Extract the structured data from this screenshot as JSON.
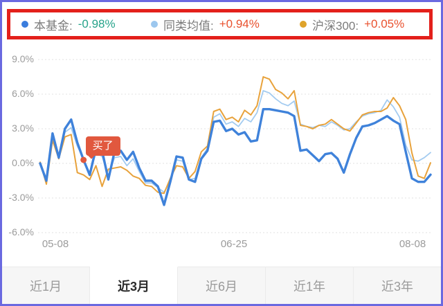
{
  "legend": {
    "items": [
      {
        "label": "本基金:",
        "value": "-0.98%",
        "dot_color": "#3b7ddd",
        "value_class": "lv-fund"
      },
      {
        "label": "同类均值:",
        "value": "+0.94%",
        "dot_color": "#9cc7ee",
        "value_class": "lv-up"
      },
      {
        "label": "沪深300:",
        "value": "+0.05%",
        "dot_color": "#dfa32a",
        "value_class": "lv-up"
      }
    ]
  },
  "marker": {
    "label": "买了",
    "index": 7,
    "dot_color": "#e1583e"
  },
  "chart_data": {
    "type": "line",
    "title": "",
    "xlabel": "",
    "ylabel": "",
    "x_labels": [
      "05-08",
      "06-25",
      "08-08"
    ],
    "ylim": [
      -6,
      9
    ],
    "yticks": [
      9,
      6,
      3,
      0,
      -3,
      -6
    ],
    "ytick_labels": [
      "9.0%",
      "6.0%",
      "3.0%",
      "0.0%",
      "-3.0%",
      "-6.0%"
    ],
    "grid": "horizontal-dotted",
    "legend_position": "top",
    "series": [
      {
        "name": "本基金",
        "data_name": "fund-line",
        "color": "#3f82da",
        "width": 3.4,
        "change": "-0.98%",
        "values": [
          0.0,
          -1.5,
          2.6,
          0.5,
          3.0,
          3.8,
          1.8,
          0.3,
          -1.0,
          1.3,
          1.1,
          -1.4,
          1.0,
          1.1,
          0.3,
          1.0,
          -0.4,
          -1.5,
          -1.5,
          -2.0,
          -3.6,
          -1.6,
          0.6,
          0.5,
          -1.4,
          -1.6,
          0.4,
          1.1,
          3.6,
          3.7,
          2.8,
          3.0,
          2.5,
          2.7,
          1.9,
          2.0,
          4.7,
          4.7,
          4.6,
          4.5,
          4.4,
          4.1,
          1.1,
          1.2,
          0.7,
          0.2,
          0.8,
          0.9,
          0.4,
          -0.8,
          0.8,
          2.2,
          3.2,
          3.3,
          3.5,
          3.8,
          4.1,
          3.7,
          3.4,
          1.0,
          -1.3,
          -1.6,
          -1.6,
          -0.98
        ]
      },
      {
        "name": "同类均值",
        "data_name": "peer-line",
        "color": "#a3cbf0",
        "width": 1.8,
        "change": "+0.94%",
        "values": [
          0.0,
          -1.3,
          2.2,
          0.5,
          2.7,
          3.1,
          1.5,
          0.4,
          -0.9,
          0.9,
          0.6,
          -1.1,
          0.5,
          0.6,
          -0.2,
          0.4,
          -0.7,
          -1.7,
          -1.7,
          -2.1,
          -2.5,
          -1.5,
          0.3,
          0.2,
          -1.4,
          -1.3,
          0.5,
          1.3,
          4.0,
          4.3,
          3.4,
          3.6,
          3.2,
          3.9,
          3.6,
          4.4,
          6.3,
          6.1,
          5.6,
          5.2,
          5.0,
          5.4,
          3.4,
          3.2,
          3.1,
          3.3,
          3.2,
          3.6,
          3.3,
          2.9,
          3.0,
          3.6,
          4.1,
          4.3,
          4.4,
          4.6,
          5.5,
          4.9,
          4.0,
          1.6,
          0.3,
          0.2,
          0.5,
          0.94
        ]
      },
      {
        "name": "沪深300",
        "data_name": "index-line",
        "color": "#e8a23b",
        "width": 2,
        "change": "+0.05%",
        "values": [
          0.1,
          -1.8,
          2.0,
          0.4,
          2.3,
          2.5,
          -0.8,
          -1.0,
          -1.4,
          -0.2,
          -2.0,
          -0.5,
          -0.4,
          -0.3,
          -0.6,
          -1.1,
          -1.3,
          -1.9,
          -2.0,
          -2.5,
          -2.6,
          -1.3,
          -0.2,
          -0.3,
          -1.3,
          -0.7,
          1.0,
          1.5,
          4.5,
          4.7,
          3.8,
          4.0,
          3.6,
          4.6,
          4.2,
          5.0,
          7.5,
          7.3,
          6.4,
          6.1,
          5.6,
          6.3,
          3.3,
          3.2,
          3.0,
          3.3,
          3.4,
          3.8,
          3.4,
          3.0,
          2.8,
          3.5,
          4.2,
          4.4,
          4.5,
          4.5,
          4.8,
          5.7,
          5.0,
          3.8,
          0.9,
          -1.1,
          -1.3,
          0.05
        ]
      }
    ]
  },
  "tabs": {
    "items": [
      {
        "label": "近1月",
        "selected": false
      },
      {
        "label": "近3月",
        "selected": true
      },
      {
        "label": "近6月",
        "selected": false
      },
      {
        "label": "近1年",
        "selected": false
      },
      {
        "label": "近3年",
        "selected": false
      }
    ]
  },
  "colors": {
    "frame_border": "#6a69e0",
    "annotation_border": "#e3201b",
    "grid": "#e1e1e1",
    "axis_text": "#9b9b9b"
  }
}
